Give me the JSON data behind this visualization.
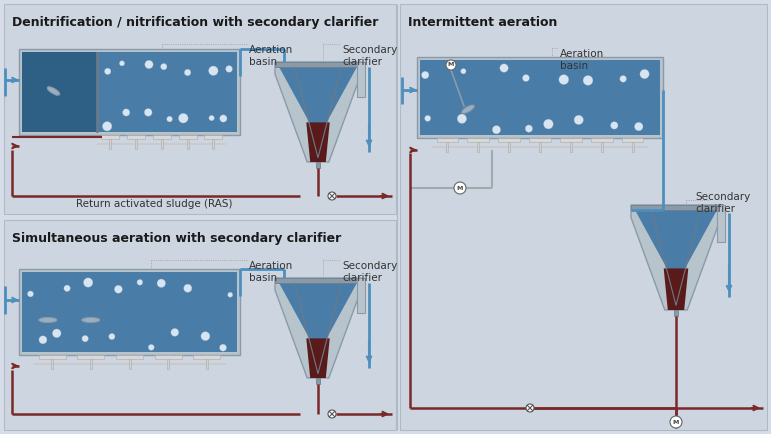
{
  "bg_color": "#d6dde8",
  "panel1_color": "#cdd5e0",
  "panel2_color": "#cdd5e0",
  "panel3_color": "#cdd5e0",
  "title1": "Denitrification / nitrification with secondary clarifier",
  "title2": "Simultaneous aeration with secondary clarifier",
  "title3": "Intermittent aeration",
  "label_aeration": "Aeration\nbasin",
  "label_secondary": "Secondary\nclarifier",
  "label_ras": "Return activated sludge (RAS)",
  "water_color": "#4a7ca8",
  "water_dark": "#2e5f85",
  "sludge_color": "#5a1a1a",
  "bubble_color": "#e8f0f8",
  "pipe_blue": "#4d8fbd",
  "pipe_brown": "#7a2828",
  "pipe_gray": "#a0a8b0",
  "steel_light": "#b8c4cc",
  "steel_mid": "#8a9aa8",
  "steel_dark": "#6a7a88",
  "font_title": 9.0,
  "font_label": 7.5
}
